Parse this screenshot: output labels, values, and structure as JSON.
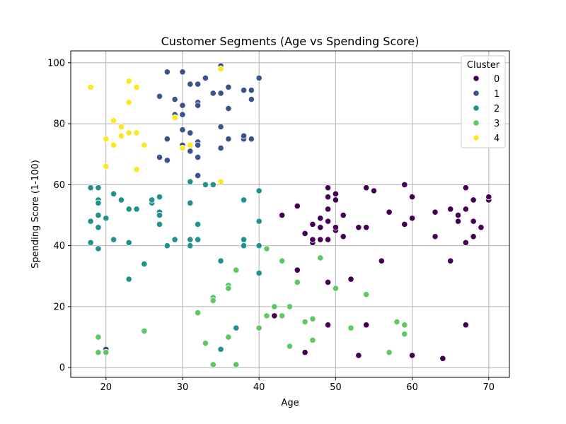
{
  "chart_data": {
    "type": "scatter",
    "title": "Customer Segments (Age vs Spending Score)",
    "xlabel": "Age",
    "ylabel": "Spending Score (1-100)",
    "xlim": [
      15.4,
      72.7
    ],
    "ylim": [
      -3.2,
      103.9
    ],
    "xticks": [
      20,
      30,
      40,
      50,
      60,
      70
    ],
    "yticks": [
      0,
      20,
      40,
      60,
      80,
      100
    ],
    "grid": true,
    "legend": {
      "title": "Cluster",
      "placement": "top-right"
    },
    "series": [
      {
        "name": "0",
        "color": "#440154",
        "points": [
          [
            43,
            50
          ],
          [
            45,
            53
          ],
          [
            46,
            44
          ],
          [
            47,
            41
          ],
          [
            47,
            42
          ],
          [
            47,
            47
          ],
          [
            48,
            42
          ],
          [
            48,
            46
          ],
          [
            48,
            49
          ],
          [
            49,
            42
          ],
          [
            49,
            48
          ],
          [
            49,
            52
          ],
          [
            49,
            56
          ],
          [
            49,
            59
          ],
          [
            50,
            45
          ],
          [
            50,
            46
          ],
          [
            50,
            55
          ],
          [
            50,
            57
          ],
          [
            51,
            43
          ],
          [
            51,
            50
          ],
          [
            53,
            46
          ],
          [
            54,
            46
          ],
          [
            54,
            59
          ],
          [
            55,
            58
          ],
          [
            56,
            35
          ],
          [
            57,
            51
          ],
          [
            59,
            47
          ],
          [
            59,
            60
          ],
          [
            60,
            49
          ],
          [
            60,
            56
          ],
          [
            63,
            43
          ],
          [
            63,
            51
          ],
          [
            65,
            35
          ],
          [
            65,
            52
          ],
          [
            66,
            48
          ],
          [
            66,
            50
          ],
          [
            67,
            41
          ],
          [
            67,
            52
          ],
          [
            67,
            59
          ],
          [
            68,
            43
          ],
          [
            68,
            48
          ],
          [
            68,
            55
          ],
          [
            69,
            46
          ],
          [
            70,
            55
          ],
          [
            70,
            56
          ],
          [
            45,
            32
          ],
          [
            49,
            28
          ],
          [
            52,
            29
          ],
          [
            49,
            14
          ],
          [
            54,
            14
          ],
          [
            67,
            14
          ],
          [
            42,
            17
          ],
          [
            46,
            5
          ],
          [
            53,
            4
          ],
          [
            60,
            4
          ],
          [
            64,
            3
          ]
        ]
      },
      {
        "name": "1",
        "color": "#3b528b",
        "points": [
          [
            28,
            97
          ],
          [
            30,
            97
          ],
          [
            33,
            95
          ],
          [
            35,
            99
          ],
          [
            40,
            95
          ],
          [
            31,
            93
          ],
          [
            32,
            93
          ],
          [
            27,
            89
          ],
          [
            29,
            88
          ],
          [
            32,
            87
          ],
          [
            32,
            86
          ],
          [
            30,
            86
          ],
          [
            34,
            90
          ],
          [
            35,
            90
          ],
          [
            38,
            91
          ],
          [
            39,
            91
          ],
          [
            36,
            92
          ],
          [
            39,
            88
          ],
          [
            29,
            83
          ],
          [
            30,
            83
          ],
          [
            36,
            85
          ],
          [
            30,
            78
          ],
          [
            31,
            77
          ],
          [
            35,
            79
          ],
          [
            28,
            75
          ],
          [
            32,
            74
          ],
          [
            32,
            73
          ],
          [
            30,
            73
          ],
          [
            36,
            75
          ],
          [
            38,
            75
          ],
          [
            38,
            76
          ],
          [
            39,
            75
          ],
          [
            31,
            71
          ],
          [
            35,
            72
          ],
          [
            27,
            69
          ],
          [
            28,
            68
          ],
          [
            32,
            69
          ],
          [
            32,
            63
          ],
          [
            20,
            6
          ]
        ]
      },
      {
        "name": "2",
        "color": "#21918c",
        "points": [
          [
            18,
            59
          ],
          [
            19,
            59
          ],
          [
            18,
            48
          ],
          [
            19,
            55
          ],
          [
            19,
            54
          ],
          [
            19,
            50
          ],
          [
            19,
            46
          ],
          [
            20,
            49
          ],
          [
            18,
            41
          ],
          [
            19,
            39
          ],
          [
            21,
            57
          ],
          [
            22,
            55
          ],
          [
            23,
            52
          ],
          [
            24,
            52
          ],
          [
            26,
            54
          ],
          [
            26,
            55
          ],
          [
            27,
            56
          ],
          [
            27,
            51
          ],
          [
            27,
            50
          ],
          [
            27,
            47
          ],
          [
            21,
            42
          ],
          [
            23,
            41
          ],
          [
            23,
            29
          ],
          [
            25,
            34
          ],
          [
            28,
            40
          ],
          [
            29,
            42
          ],
          [
            31,
            61
          ],
          [
            31,
            54
          ],
          [
            31,
            42
          ],
          [
            31,
            40
          ],
          [
            32,
            47
          ],
          [
            32,
            42
          ],
          [
            33,
            60
          ],
          [
            34,
            60
          ],
          [
            38,
            55
          ],
          [
            38,
            42
          ],
          [
            38,
            40
          ],
          [
            40,
            58
          ],
          [
            40,
            48
          ],
          [
            40,
            40
          ],
          [
            40,
            31
          ],
          [
            35,
            35
          ],
          [
            36,
            26
          ],
          [
            37,
            13
          ],
          [
            35,
            6
          ]
        ]
      },
      {
        "name": "3",
        "color": "#5ec962",
        "points": [
          [
            19,
            10
          ],
          [
            19,
            5
          ],
          [
            20,
            5
          ],
          [
            25,
            12
          ],
          [
            32,
            18
          ],
          [
            33,
            8
          ],
          [
            34,
            23
          ],
          [
            34,
            22
          ],
          [
            34,
            1
          ],
          [
            36,
            27
          ],
          [
            36,
            26
          ],
          [
            36,
            10
          ],
          [
            37,
            32
          ],
          [
            37,
            1
          ],
          [
            40,
            13
          ],
          [
            41,
            39
          ],
          [
            41,
            17
          ],
          [
            42,
            20
          ],
          [
            43,
            35
          ],
          [
            43,
            17
          ],
          [
            44,
            20
          ],
          [
            44,
            7
          ],
          [
            45,
            28
          ],
          [
            46,
            15
          ],
          [
            47,
            16
          ],
          [
            47,
            9
          ],
          [
            48,
            36
          ],
          [
            50,
            26
          ],
          [
            52,
            13
          ],
          [
            54,
            24
          ],
          [
            57,
            5
          ],
          [
            58,
            15
          ],
          [
            59,
            14
          ],
          [
            59,
            11
          ]
        ]
      },
      {
        "name": "4",
        "color": "#fde725",
        "points": [
          [
            18,
            92
          ],
          [
            23,
            94
          ],
          [
            24,
            92
          ],
          [
            35,
            98
          ],
          [
            23,
            87
          ],
          [
            21,
            81
          ],
          [
            22,
            79
          ],
          [
            22,
            76
          ],
          [
            23,
            77
          ],
          [
            24,
            77
          ],
          [
            20,
            75
          ],
          [
            21,
            73
          ],
          [
            25,
            73
          ],
          [
            29,
            82
          ],
          [
            30,
            72
          ],
          [
            31,
            73
          ],
          [
            20,
            66
          ],
          [
            24,
            65
          ],
          [
            35,
            61
          ]
        ]
      }
    ]
  }
}
